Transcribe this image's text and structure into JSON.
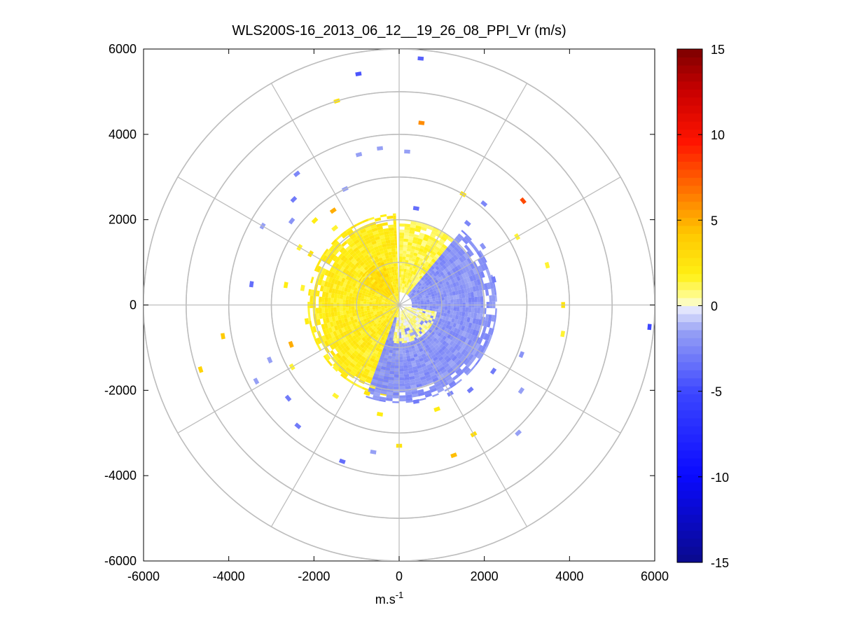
{
  "chart_data": {
    "type": "heatmap",
    "subtype": "polar-ppi",
    "title": "WLS200S-16_2013_06_12__19_26_08_PPI_Vr (m/s)",
    "xlabel_base": "m.s",
    "xlabel_exp": "-1",
    "xlim": [
      -6000,
      6000
    ],
    "ylim": [
      -6000,
      6000
    ],
    "xticks": [
      "-6000",
      "-4000",
      "-2000",
      "0",
      "2000",
      "4000",
      "6000"
    ],
    "yticks": [
      "6000",
      "4000",
      "2000",
      "0",
      "-2000",
      "-4000",
      "-6000"
    ],
    "range_rings": [
      1000,
      2000,
      3000,
      4000,
      5000,
      6000
    ],
    "spoke_angles_deg": [
      0,
      30,
      60,
      90,
      120,
      150,
      180,
      210,
      240,
      270,
      300,
      330
    ],
    "colorbar": {
      "min": -15,
      "max": 15,
      "ticks": [
        "15",
        "10",
        "5",
        "0",
        "-5",
        "-10",
        "-15"
      ],
      "tick_values": [
        15,
        10,
        5,
        0,
        -5,
        -10,
        -15
      ]
    },
    "core_field": {
      "description_free": true,
      "inner_radius": 0,
      "outer_radius": 2200,
      "regions": [
        {
          "az_from": -180,
          "az_to": -2,
          "r_from": 0,
          "r_to": 2150,
          "value": 2.0
        },
        {
          "az_from": 0,
          "az_to": 40,
          "r_from": 300,
          "r_to": 2000,
          "value": 1.2
        },
        {
          "az_from": 40,
          "az_to": 200,
          "r_from": 300,
          "r_to": 2300,
          "value": -2.0
        },
        {
          "az_from": 100,
          "az_to": 190,
          "r_from": 150,
          "r_to": 900,
          "value": 0.5
        },
        {
          "az_from": -60,
          "az_to": -20,
          "r_from": 300,
          "r_to": 1100,
          "value": 3.0
        }
      ]
    },
    "echo_segments": [
      {
        "r": 5800,
        "az": 5,
        "v": -4
      },
      {
        "r": 5500,
        "az": -10,
        "v": -4.5
      },
      {
        "r": 5000,
        "az": -17,
        "v": 2.5
      },
      {
        "r": 4300,
        "az": 7,
        "v": 6
      },
      {
        "r": 3800,
        "az": 50,
        "v": 8
      },
      {
        "r": 3600,
        "az": 3,
        "v": -1.5
      },
      {
        "r": 3700,
        "az": -7,
        "v": -1.5
      },
      {
        "r": 3650,
        "az": -15,
        "v": -1.5
      },
      {
        "r": 3900,
        "az": -38,
        "v": -2.5
      },
      {
        "r": 3500,
        "az": -45,
        "v": -3
      },
      {
        "r": 3700,
        "az": -60,
        "v": -1.5
      },
      {
        "r": 3500,
        "az": -82,
        "v": -3.5
      },
      {
        "r": 4200,
        "az": -100,
        "v": 4
      },
      {
        "r": 4900,
        "az": -108,
        "v": 3.5
      },
      {
        "r": 3300,
        "az": -113,
        "v": -1.5
      },
      {
        "r": 3800,
        "az": -118,
        "v": -1.5
      },
      {
        "r": 3400,
        "az": -130,
        "v": -3
      },
      {
        "r": 3700,
        "az": -140,
        "v": -3
      },
      {
        "r": 3900,
        "az": -160,
        "v": -3.5
      },
      {
        "r": 3500,
        "az": -170,
        "v": -1.5
      },
      {
        "r": 3300,
        "az": 180,
        "v": 2.5
      },
      {
        "r": 3750,
        "az": 160,
        "v": 4.5
      },
      {
        "r": 3500,
        "az": 150,
        "v": 3
      },
      {
        "r": 4100,
        "az": 137,
        "v": -1.5
      },
      {
        "r": 3500,
        "az": 125,
        "v": -1.5
      },
      {
        "r": 3900,
        "az": 100,
        "v": 1.5
      },
      {
        "r": 3850,
        "az": 90,
        "v": 2.5
      },
      {
        "r": 3600,
        "az": 75,
        "v": 1.5
      },
      {
        "r": 3200,
        "az": 60,
        "v": 1.5
      },
      {
        "r": 3000,
        "az": 30,
        "v": 2.5
      },
      {
        "r": 3100,
        "az": 40,
        "v": -2.5
      },
      {
        "r": 5900,
        "az": 95,
        "v": -5
      },
      {
        "r": 3100,
        "az": 112,
        "v": -2
      },
      {
        "r": 2700,
        "az": 125,
        "v": -3
      },
      {
        "r": 2600,
        "az": 140,
        "v": -3
      },
      {
        "r": 2600,
        "az": 160,
        "v": 2
      },
      {
        "r": 2600,
        "az": 190,
        "v": 2
      },
      {
        "r": 2600,
        "az": 215,
        "v": 1.5
      },
      {
        "r": 2700,
        "az": 250,
        "v": 5
      },
      {
        "r": 2900,
        "az": 240,
        "v": 1.5
      },
      {
        "r": 2700,
        "az": 280,
        "v": 2
      },
      {
        "r": 2700,
        "az": 300,
        "v": 1.5
      },
      {
        "r": 2800,
        "az": 315,
        "v": 2
      },
      {
        "r": 2700,
        "az": 325,
        "v": 5
      },
      {
        "r": 2300,
        "az": 10,
        "v": -3.5
      },
      {
        "r": 2500,
        "az": 40,
        "v": -2.5
      },
      {
        "r": 2400,
        "az": 55,
        "v": -2
      },
      {
        "r": 2300,
        "az": 75,
        "v": -3
      },
      {
        "r": 2000,
        "az": 100,
        "v": -2
      },
      {
        "r": 2200,
        "az": 110,
        "v": -2.5
      },
      {
        "r": 2400,
        "az": 150,
        "v": -2.5
      },
      {
        "r": 2300,
        "az": 170,
        "v": -3
      },
      {
        "r": 2200,
        "az": 200,
        "v": 2.5
      },
      {
        "r": 2100,
        "az": 225,
        "v": 1.5
      },
      {
        "r": 2200,
        "az": 260,
        "v": 2
      },
      {
        "r": 2300,
        "az": 280,
        "v": 1.5
      },
      {
        "r": 2400,
        "az": 300,
        "v": 2.5
      },
      {
        "r": 2350,
        "az": 320,
        "v": 1.5
      },
      {
        "r": 3000,
        "az": -25,
        "v": -1.5
      },
      {
        "r": 3200,
        "az": -52,
        "v": -2
      }
    ]
  }
}
